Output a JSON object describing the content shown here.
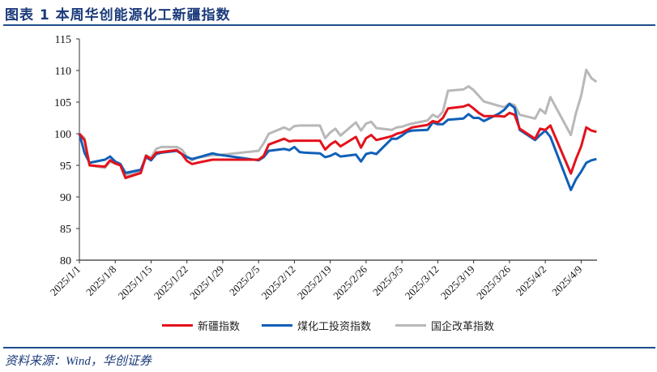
{
  "header": {
    "title": "图表 1  本周华创能源化工新疆指数"
  },
  "footer": {
    "source": "资料来源：Wind，华创证券"
  },
  "legend": [
    {
      "label": "新疆指数",
      "color": "#e3121c"
    },
    {
      "label": "煤化工投资指数",
      "color": "#1060b8"
    },
    {
      "label": "国企改革指数",
      "color": "#b8b8b8"
    }
  ],
  "chart_data": {
    "type": "line",
    "title": "本周华创能源化工新疆指数",
    "xlabel": "",
    "ylabel": "",
    "ylim": [
      80,
      115
    ],
    "yticks": [
      80,
      85,
      90,
      95,
      100,
      105,
      110,
      115
    ],
    "xticks": [
      "2025/1/1",
      "2025/1/8",
      "2025/1/15",
      "2025/1/22",
      "2025/1/29",
      "2025/2/5",
      "2025/2/12",
      "2025/2/19",
      "2025/2/26",
      "2025/3/5",
      "2025/3/12",
      "2025/3/19",
      "2025/3/26",
      "2025/4/2",
      "2025/4/9"
    ],
    "grid": false,
    "legend_position": "bottom",
    "x_days": [
      0,
      1,
      2,
      5,
      6,
      7,
      8,
      9,
      12,
      13,
      14,
      15,
      16,
      19,
      20,
      21,
      22,
      23,
      26,
      27,
      35,
      36,
      37,
      40,
      41,
      42,
      43,
      44,
      47,
      48,
      49,
      50,
      51,
      54,
      55,
      56,
      57,
      58,
      61,
      62,
      63,
      64,
      65,
      68,
      69,
      70,
      71,
      72,
      75,
      76,
      77,
      78,
      79,
      82,
      83,
      84,
      85,
      86,
      89,
      90,
      91,
      92,
      96,
      97,
      98,
      99,
      100,
      101
    ],
    "series": [
      {
        "name": "新疆指数",
        "color": "#e3121c",
        "values": [
          100.0,
          99.0,
          95.0,
          94.8,
          95.8,
          95.3,
          95.0,
          93.0,
          93.8,
          96.5,
          96.0,
          97.0,
          97.1,
          97.4,
          96.8,
          95.7,
          95.2,
          95.4,
          95.9,
          95.9,
          95.9,
          96.5,
          98.3,
          99.2,
          98.8,
          98.9,
          98.9,
          98.9,
          98.9,
          97.5,
          98.3,
          98.8,
          98.0,
          99.5,
          97.8,
          99.3,
          99.8,
          99.0,
          99.6,
          100.0,
          100.2,
          100.6,
          101.0,
          101.4,
          102.0,
          101.8,
          102.5,
          104.0,
          104.3,
          104.6,
          104.0,
          103.3,
          102.8,
          102.8,
          102.7,
          103.3,
          103.0,
          100.8,
          99.2,
          100.8,
          100.6,
          101.3,
          93.7,
          96.0,
          98.0,
          101.0,
          100.5,
          100.3
        ]
      },
      {
        "name": "煤化工投资指数",
        "color": "#1060b8",
        "values": [
          100.0,
          97.0,
          95.4,
          95.9,
          96.4,
          95.6,
          95.2,
          93.8,
          94.3,
          96.3,
          95.8,
          96.8,
          97.0,
          97.3,
          96.8,
          96.3,
          96.0,
          96.2,
          96.9,
          96.7,
          95.8,
          96.3,
          97.3,
          97.6,
          97.4,
          97.9,
          97.1,
          97.0,
          96.9,
          96.3,
          96.5,
          96.9,
          96.4,
          96.7,
          95.6,
          96.8,
          97.0,
          96.8,
          99.2,
          99.2,
          99.7,
          100.3,
          100.5,
          100.6,
          101.8,
          101.5,
          101.5,
          102.2,
          102.4,
          103.1,
          102.5,
          102.5,
          102.0,
          103.2,
          103.8,
          104.7,
          104.1,
          100.6,
          99.0,
          99.8,
          100.5,
          99.5,
          91.1,
          92.8,
          94.0,
          95.4,
          95.8,
          96.0
        ]
      },
      {
        "name": "国企改革指数",
        "color": "#b8b8b8",
        "values": [
          100.0,
          99.3,
          95.0,
          94.6,
          95.6,
          95.3,
          95.0,
          93.4,
          94.0,
          96.6,
          96.2,
          97.6,
          97.9,
          97.9,
          97.5,
          96.4,
          95.8,
          96.2,
          96.6,
          96.6,
          97.3,
          98.5,
          100.0,
          101.0,
          100.6,
          101.2,
          101.3,
          101.3,
          101.3,
          99.3,
          100.2,
          100.8,
          99.7,
          101.8,
          100.5,
          101.6,
          101.9,
          100.9,
          100.6,
          101.0,
          101.1,
          101.4,
          101.6,
          102.1,
          103.0,
          102.6,
          103.5,
          106.8,
          107.0,
          107.5,
          106.9,
          106.0,
          105.1,
          104.4,
          104.2,
          104.8,
          104.5,
          103.0,
          102.4,
          103.9,
          103.2,
          105.8,
          99.8,
          103.3,
          106.0,
          110.1,
          108.8,
          108.2
        ]
      }
    ]
  }
}
